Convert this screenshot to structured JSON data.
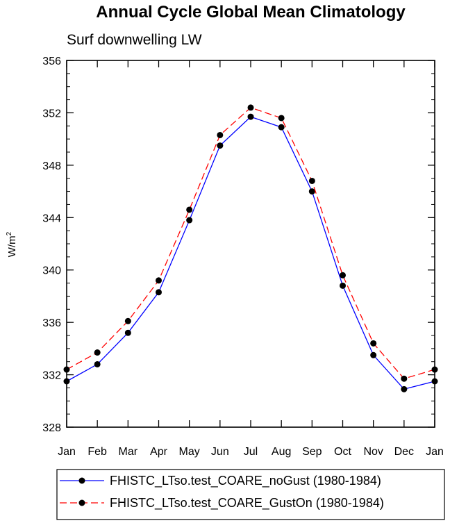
{
  "chart_data": {
    "type": "line",
    "title": "Annual Cycle Global Mean Climatology",
    "subtitle": "Surf downwelling LW",
    "xlabel": "",
    "ylabel": "W/m",
    "ylabel_superscript": "2",
    "categories": [
      "Jan",
      "Feb",
      "Mar",
      "Apr",
      "May",
      "Jun",
      "Jul",
      "Aug",
      "Sep",
      "Oct",
      "Nov",
      "Dec",
      "Jan"
    ],
    "ylim": [
      328,
      356
    ],
    "yticks": [
      328,
      332,
      336,
      340,
      344,
      348,
      352,
      356
    ],
    "grid": false,
    "legend_position": "bottom",
    "series": [
      {
        "name": "FHISTC_LTso.test_COARE_noGust (1980-1984)",
        "color": "#0000ff",
        "dash": "solid",
        "marker": "filled-circle",
        "values": [
          331.5,
          332.8,
          335.2,
          338.3,
          343.8,
          349.5,
          351.7,
          350.9,
          346.0,
          338.8,
          333.5,
          330.9,
          331.5
        ]
      },
      {
        "name": "FHISTC_LTso.test_COARE_GustOn (1980-1984)",
        "color": "#ff0000",
        "dash": "dashed",
        "marker": "filled-circle",
        "values": [
          332.4,
          333.7,
          336.1,
          339.2,
          344.6,
          350.3,
          352.4,
          351.6,
          346.8,
          339.6,
          334.4,
          331.7,
          332.4
        ]
      }
    ]
  }
}
